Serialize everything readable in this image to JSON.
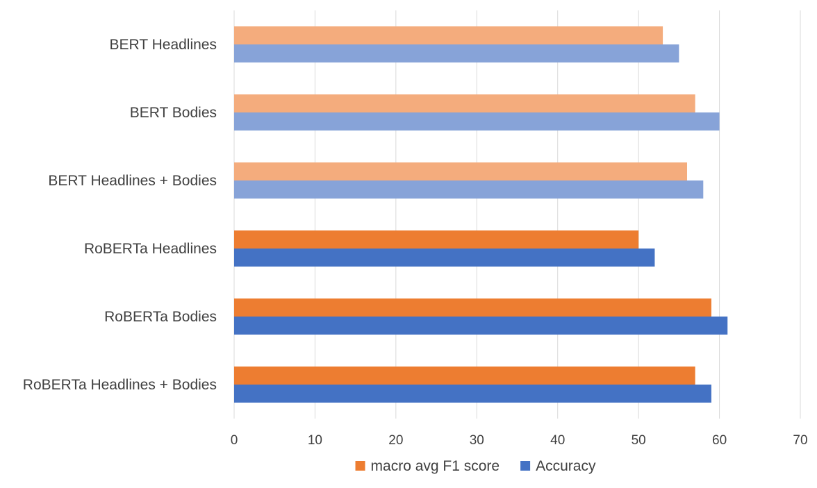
{
  "chart_data": {
    "type": "bar",
    "orientation": "horizontal",
    "categories": [
      "BERT Headlines",
      "BERT Bodies",
      "BERT Headlines + Bodies",
      "RoBERTa Headlines",
      "RoBERTa Bodies",
      "RoBERTa Headlines + Bodies"
    ],
    "series": [
      {
        "name": "macro avg F1 score",
        "values": [
          53,
          57,
          56,
          50,
          59,
          57
        ],
        "colors": [
          "#f4ac7d",
          "#f4ac7d",
          "#f4ac7d",
          "#ed7d31",
          "#ed7d31",
          "#ed7d31"
        ]
      },
      {
        "name": "Accuracy",
        "values": [
          55,
          60,
          58,
          52,
          61,
          59
        ],
        "colors": [
          "#87a3d8",
          "#87a3d8",
          "#87a3d8",
          "#4472c4",
          "#4472c4",
          "#4472c4"
        ]
      }
    ],
    "xlim": [
      0,
      70
    ],
    "ticks": [
      "0",
      "10",
      "20",
      "30",
      "40",
      "50",
      "60",
      "70"
    ],
    "grid": true,
    "legend_position": "bottom",
    "legend": [
      {
        "label": "macro avg F1 score",
        "color": "#ed7d31"
      },
      {
        "label": "Accuracy",
        "color": "#4472c4"
      }
    ],
    "title": "",
    "xlabel": "",
    "ylabel": ""
  }
}
